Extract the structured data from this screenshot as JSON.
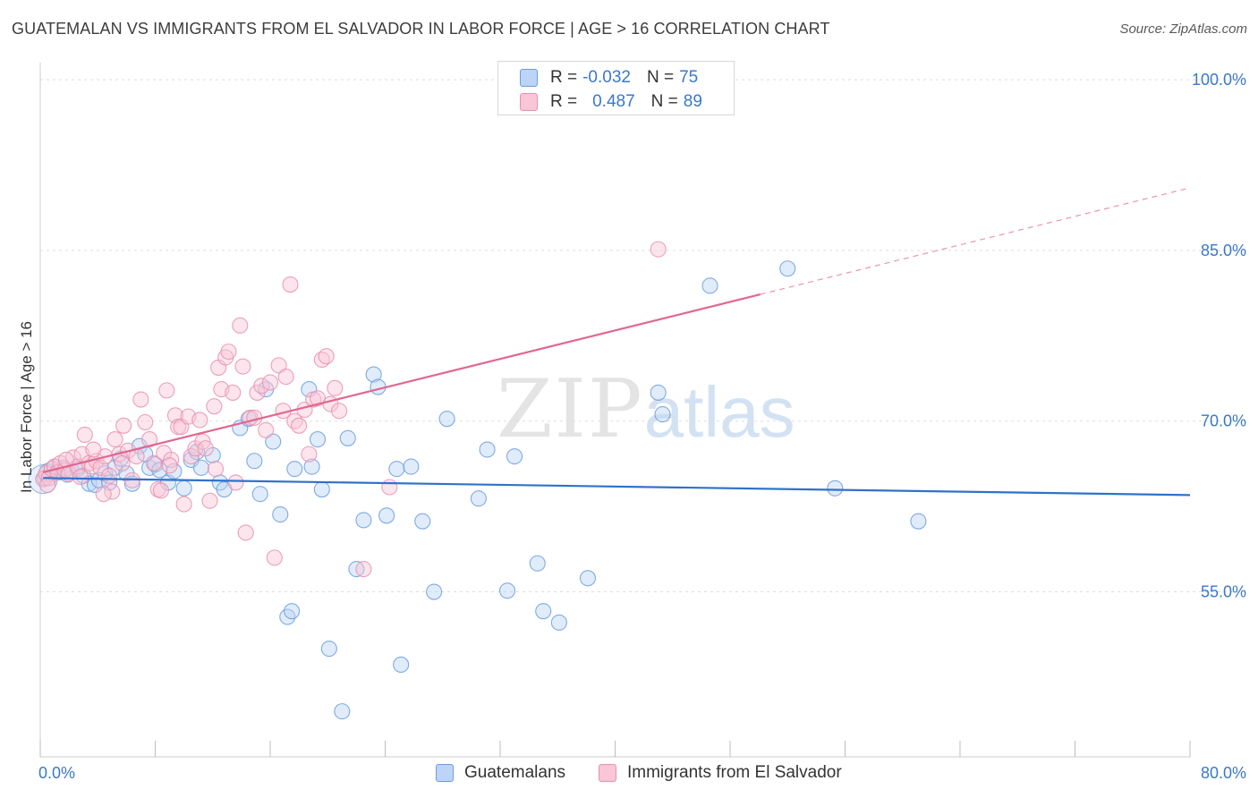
{
  "title": "GUATEMALAN VS IMMIGRANTS FROM EL SALVADOR IN LABOR FORCE | AGE > 16 CORRELATION CHART",
  "source": "Source: ZipAtlas.com",
  "watermark": {
    "zip": "ZIP",
    "atlas": "atlas"
  },
  "legend": {
    "rows": [
      {
        "r_label": "R =",
        "r_value": "-0.032",
        "n_label": "N =",
        "n_value": "75"
      },
      {
        "r_label": "R =",
        "r_value": "0.487",
        "n_label": "N =",
        "n_value": "89"
      }
    ],
    "bottom": [
      "Guatemalans",
      "Immigrants from El Salvador"
    ]
  },
  "colors": {
    "blue_fill": "#bcd4f5",
    "blue_stroke": "#6a9de0",
    "blue_line": "#2f72c9",
    "pink_fill": "#f8c6d6",
    "pink_stroke": "#e890ae",
    "pink_line": "#e26690",
    "tick_text": "#3a78c9",
    "grid": "#dddddd"
  },
  "chart_data": {
    "type": "scatter",
    "xlabel": "",
    "ylabel": "In Labor Force | Age > 16",
    "xlim": [
      0,
      80
    ],
    "ylim": [
      40.5,
      101.5
    ],
    "x_tick_labels": [
      {
        "value": 0,
        "label": "0.0%"
      },
      {
        "value": 80,
        "label": "80.0%"
      }
    ],
    "y_tick_labels": [
      {
        "value": 100,
        "label": "100.0%"
      },
      {
        "value": 85,
        "label": "85.0%"
      },
      {
        "value": 70,
        "label": "70.0%"
      },
      {
        "value": 55,
        "label": "55.0%"
      }
    ],
    "grid": true,
    "legend_position": "top-center",
    "series": [
      {
        "name": "Guatemalans",
        "r": -0.032,
        "n": 75,
        "trend": {
          "x0": 0.2,
          "y0": 65.0,
          "x1": 80.0,
          "y1": 63.5,
          "dashed_from": null
        },
        "points": [
          [
            0.3,
            65.0
          ],
          [
            0.5,
            65.6
          ],
          [
            0.7,
            65.4
          ],
          [
            1.0,
            66.0
          ],
          [
            1.3,
            65.5
          ],
          [
            1.6,
            65.9
          ],
          [
            1.9,
            65.3
          ],
          [
            2.2,
            65.6
          ],
          [
            2.6,
            65.8
          ],
          [
            3.0,
            65.2
          ],
          [
            3.4,
            64.5
          ],
          [
            3.8,
            64.4
          ],
          [
            4.1,
            64.8
          ],
          [
            4.5,
            65.4
          ],
          [
            4.8,
            64.6
          ],
          [
            5.2,
            65.9
          ],
          [
            5.6,
            66.7
          ],
          [
            6.0,
            65.4
          ],
          [
            6.4,
            64.5
          ],
          [
            6.9,
            67.8
          ],
          [
            7.3,
            67.1
          ],
          [
            7.6,
            65.9
          ],
          [
            8.0,
            66.2
          ],
          [
            8.3,
            65.7
          ],
          [
            8.9,
            64.6
          ],
          [
            9.3,
            65.6
          ],
          [
            10.0,
            64.1
          ],
          [
            10.5,
            66.6
          ],
          [
            10.9,
            67.3
          ],
          [
            11.2,
            65.9
          ],
          [
            12.0,
            67.0
          ],
          [
            12.5,
            64.6
          ],
          [
            12.8,
            64.0
          ],
          [
            13.9,
            69.4
          ],
          [
            14.5,
            70.2
          ],
          [
            14.9,
            66.5
          ],
          [
            15.3,
            63.6
          ],
          [
            15.7,
            72.8
          ],
          [
            16.2,
            68.2
          ],
          [
            16.7,
            61.8
          ],
          [
            17.2,
            52.8
          ],
          [
            17.5,
            53.3
          ],
          [
            17.7,
            65.8
          ],
          [
            18.7,
            72.8
          ],
          [
            18.9,
            66.0
          ],
          [
            19.3,
            68.4
          ],
          [
            19.6,
            64.0
          ],
          [
            20.1,
            50.0
          ],
          [
            21.0,
            44.5
          ],
          [
            21.4,
            68.5
          ],
          [
            22.0,
            57.0
          ],
          [
            22.5,
            61.3
          ],
          [
            23.2,
            74.1
          ],
          [
            23.5,
            73.0
          ],
          [
            24.1,
            61.7
          ],
          [
            24.8,
            65.8
          ],
          [
            25.1,
            48.6
          ],
          [
            25.8,
            66.0
          ],
          [
            26.6,
            61.2
          ],
          [
            27.4,
            55.0
          ],
          [
            28.3,
            70.2
          ],
          [
            30.5,
            63.2
          ],
          [
            31.1,
            67.5
          ],
          [
            32.5,
            55.1
          ],
          [
            33.0,
            66.9
          ],
          [
            34.6,
            57.5
          ],
          [
            35.0,
            53.3
          ],
          [
            36.1,
            52.3
          ],
          [
            38.1,
            56.2
          ],
          [
            43.0,
            72.5
          ],
          [
            43.3,
            70.6
          ],
          [
            46.6,
            81.9
          ],
          [
            52.0,
            83.4
          ],
          [
            55.3,
            64.1
          ],
          [
            61.1,
            61.2
          ]
        ]
      },
      {
        "name": "Immigrants from El Salvador",
        "r": 0.487,
        "n": 89,
        "trend": {
          "x0": 0.2,
          "y0": 65.5,
          "x1": 80.0,
          "y1": 90.5,
          "dashed_from": 50.1
        },
        "points": [
          [
            0.2,
            64.9
          ],
          [
            0.4,
            65.4
          ],
          [
            0.6,
            65.0
          ],
          [
            0.8,
            65.8
          ],
          [
            1.0,
            66.0
          ],
          [
            1.2,
            65.5
          ],
          [
            1.4,
            66.3
          ],
          [
            1.7,
            65.7
          ],
          [
            2.0,
            65.4
          ],
          [
            2.3,
            66.8
          ],
          [
            2.6,
            66.0
          ],
          [
            2.9,
            67.1
          ],
          [
            3.1,
            68.8
          ],
          [
            3.4,
            66.3
          ],
          [
            3.6,
            66.0
          ],
          [
            3.9,
            66.5
          ],
          [
            4.2,
            65.9
          ],
          [
            4.5,
            66.9
          ],
          [
            4.8,
            65.2
          ],
          [
            5.0,
            63.8
          ],
          [
            5.2,
            68.4
          ],
          [
            5.5,
            67.1
          ],
          [
            5.8,
            69.6
          ],
          [
            6.1,
            67.4
          ],
          [
            6.4,
            64.8
          ],
          [
            6.7,
            66.9
          ],
          [
            7.0,
            71.9
          ],
          [
            7.3,
            69.9
          ],
          [
            7.6,
            68.4
          ],
          [
            7.9,
            66.3
          ],
          [
            8.2,
            64.0
          ],
          [
            8.4,
            63.9
          ],
          [
            8.6,
            67.2
          ],
          [
            8.8,
            72.7
          ],
          [
            9.1,
            66.6
          ],
          [
            9.4,
            70.5
          ],
          [
            9.6,
            69.5
          ],
          [
            9.8,
            69.5
          ],
          [
            10.0,
            62.7
          ],
          [
            10.3,
            70.4
          ],
          [
            10.5,
            66.9
          ],
          [
            10.8,
            67.6
          ],
          [
            11.1,
            70.1
          ],
          [
            11.3,
            68.2
          ],
          [
            11.5,
            67.6
          ],
          [
            11.8,
            63.0
          ],
          [
            12.1,
            71.3
          ],
          [
            12.4,
            74.7
          ],
          [
            12.6,
            72.8
          ],
          [
            12.9,
            75.6
          ],
          [
            13.1,
            76.1
          ],
          [
            13.4,
            72.5
          ],
          [
            13.6,
            64.6
          ],
          [
            13.9,
            78.4
          ],
          [
            14.1,
            74.8
          ],
          [
            14.3,
            60.2
          ],
          [
            14.6,
            70.3
          ],
          [
            14.9,
            70.3
          ],
          [
            15.1,
            72.5
          ],
          [
            15.4,
            73.1
          ],
          [
            15.7,
            69.2
          ],
          [
            16.0,
            73.4
          ],
          [
            16.3,
            58.0
          ],
          [
            16.6,
            74.9
          ],
          [
            16.9,
            70.9
          ],
          [
            17.1,
            73.9
          ],
          [
            17.4,
            82.0
          ],
          [
            17.7,
            70.0
          ],
          [
            18.0,
            69.6
          ],
          [
            18.4,
            71.0
          ],
          [
            18.7,
            67.1
          ],
          [
            19.0,
            71.9
          ],
          [
            19.3,
            72.0
          ],
          [
            19.6,
            75.4
          ],
          [
            19.9,
            75.7
          ],
          [
            20.2,
            71.5
          ],
          [
            20.5,
            72.9
          ],
          [
            20.8,
            70.9
          ],
          [
            22.5,
            57.0
          ],
          [
            24.3,
            64.2
          ],
          [
            43.0,
            85.1
          ],
          [
            0.5,
            64.4
          ],
          [
            1.8,
            66.6
          ],
          [
            2.8,
            65.1
          ],
          [
            3.7,
            67.5
          ],
          [
            4.4,
            63.6
          ],
          [
            5.7,
            66.3
          ],
          [
            9.0,
            66.1
          ],
          [
            12.2,
            65.8
          ]
        ]
      }
    ]
  }
}
